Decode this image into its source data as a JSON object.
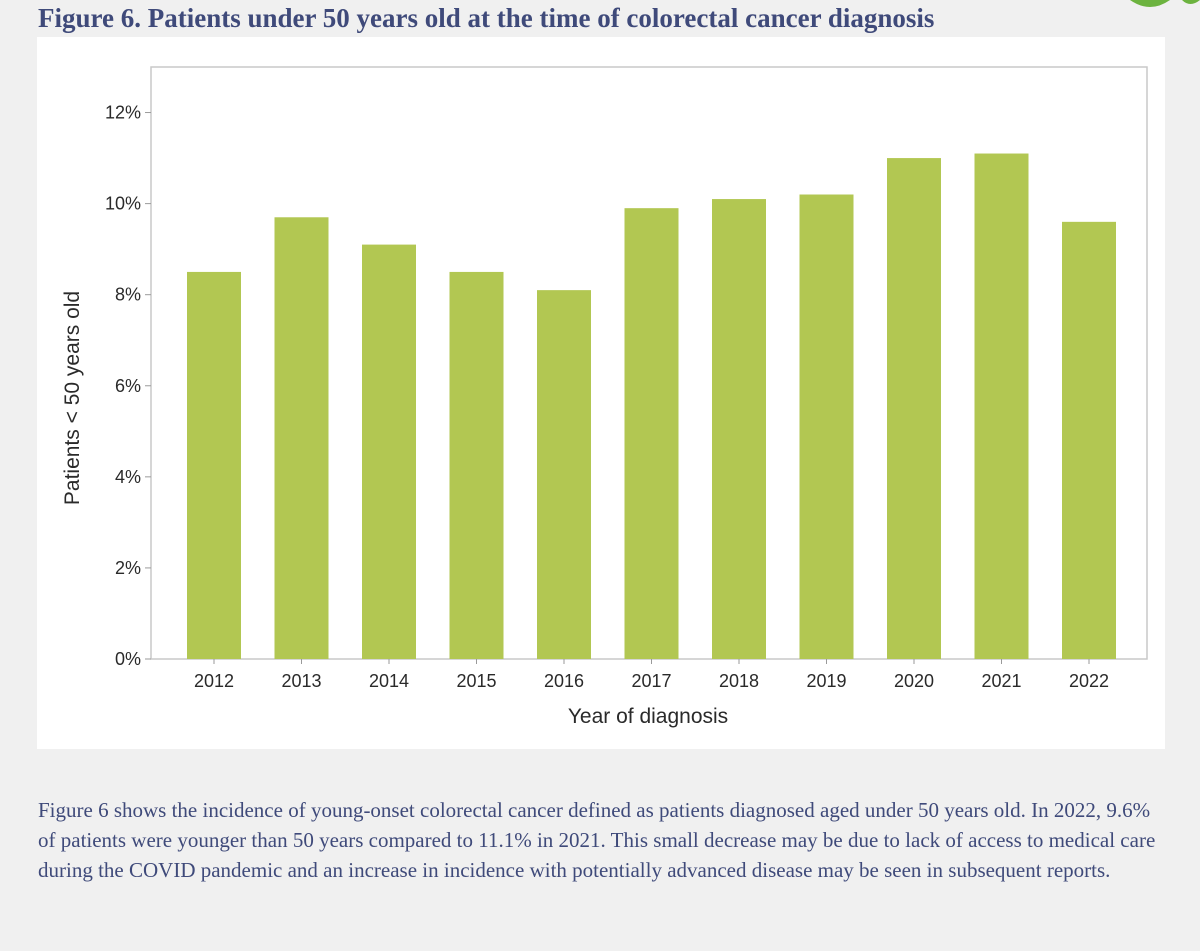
{
  "figure": {
    "title": "Figure 6. Patients under 50 years old at the time of colorectal cancer diagnosis",
    "caption": "Figure 6 shows the incidence of young-onset colorectal cancer defined as patients diagnosed aged under 50 years old. In 2022, 9.6% of patients were younger than 50 years compared to 11.1% in 2021. This small decrease may be due to lack of access to medical care during the COVID pandemic and an increase in incidence with potentially advanced disease may be seen in subsequent reports."
  },
  "colors": {
    "bar": "#b2c752",
    "title": "#3f4a7a",
    "accent_leaf": "#6cb33f"
  },
  "chart_data": {
    "type": "bar",
    "title": "",
    "xlabel": "Year of diagnosis",
    "ylabel": "Patients < 50 years old",
    "categories": [
      "2012",
      "2013",
      "2014",
      "2015",
      "2016",
      "2017",
      "2018",
      "2019",
      "2020",
      "2021",
      "2022"
    ],
    "values": [
      8.5,
      9.7,
      9.1,
      8.5,
      8.1,
      9.9,
      10.1,
      10.2,
      11.0,
      11.1,
      9.6
    ],
    "ylim": [
      0,
      13
    ],
    "yticks": [
      0,
      2,
      4,
      6,
      8,
      10,
      12
    ],
    "ytick_labels": [
      "0%",
      "2%",
      "4%",
      "6%",
      "8%",
      "10%",
      "12%"
    ],
    "grid": false,
    "legend": "none"
  }
}
